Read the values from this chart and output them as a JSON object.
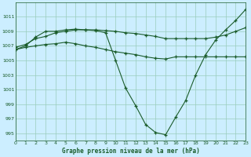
{
  "background_color": "#cceeff",
  "plot_bg_color": "#cceeff",
  "grid_color": "#99ccbb",
  "line_color": "#1a5c2a",
  "title": "Graphe pression niveau de la mer (hPa)",
  "ylim": [
    994,
    1013
  ],
  "xlim": [
    0,
    23
  ],
  "yticks": [
    995,
    997,
    999,
    1001,
    1003,
    1005,
    1007,
    1009,
    1011
  ],
  "xticks": [
    0,
    1,
    2,
    3,
    4,
    5,
    6,
    7,
    8,
    9,
    10,
    11,
    12,
    13,
    14,
    15,
    16,
    17,
    18,
    19,
    20,
    21,
    22,
    23
  ],
  "series1": {
    "x": [
      0,
      1,
      2,
      3,
      4,
      5,
      6,
      7,
      8,
      9,
      10,
      11,
      12,
      13,
      14,
      15,
      16,
      17,
      18,
      19,
      20,
      21,
      22,
      23
    ],
    "y": [
      1006.5,
      1007.0,
      1008.2,
      1009.0,
      1009.0,
      1009.2,
      1009.3,
      1009.2,
      1009.1,
      1008.8,
      1005.0,
      1001.2,
      998.8,
      996.2,
      995.1,
      994.8,
      997.2,
      999.5,
      1003.0,
      1005.8,
      1007.8,
      1009.2,
      1010.5,
      1012.0
    ]
  },
  "series2": {
    "x": [
      0,
      1,
      2,
      3,
      4,
      5,
      6,
      7,
      8,
      9,
      10,
      11,
      12,
      13,
      14,
      15,
      16,
      17,
      18,
      19,
      20,
      21,
      22,
      23
    ],
    "y": [
      1006.8,
      1007.2,
      1008.0,
      1008.3,
      1008.8,
      1009.0,
      1009.2,
      1009.2,
      1009.2,
      1009.1,
      1009.0,
      1008.8,
      1008.7,
      1008.5,
      1008.3,
      1008.0,
      1008.0,
      1008.0,
      1008.0,
      1008.0,
      1008.2,
      1008.5,
      1009.0,
      1009.5
    ]
  },
  "series3": {
    "x": [
      0,
      1,
      2,
      3,
      4,
      5,
      6,
      7,
      8,
      9,
      10,
      11,
      12,
      13,
      14,
      15,
      16,
      17,
      18,
      19,
      20,
      21,
      22,
      23
    ],
    "y": [
      1006.5,
      1006.8,
      1007.0,
      1007.2,
      1007.3,
      1007.5,
      1007.3,
      1007.0,
      1006.8,
      1006.5,
      1006.2,
      1006.0,
      1005.8,
      1005.5,
      1005.3,
      1005.2,
      1005.5,
      1005.5,
      1005.5,
      1005.5,
      1005.5,
      1005.5,
      1005.5,
      1005.5
    ]
  }
}
